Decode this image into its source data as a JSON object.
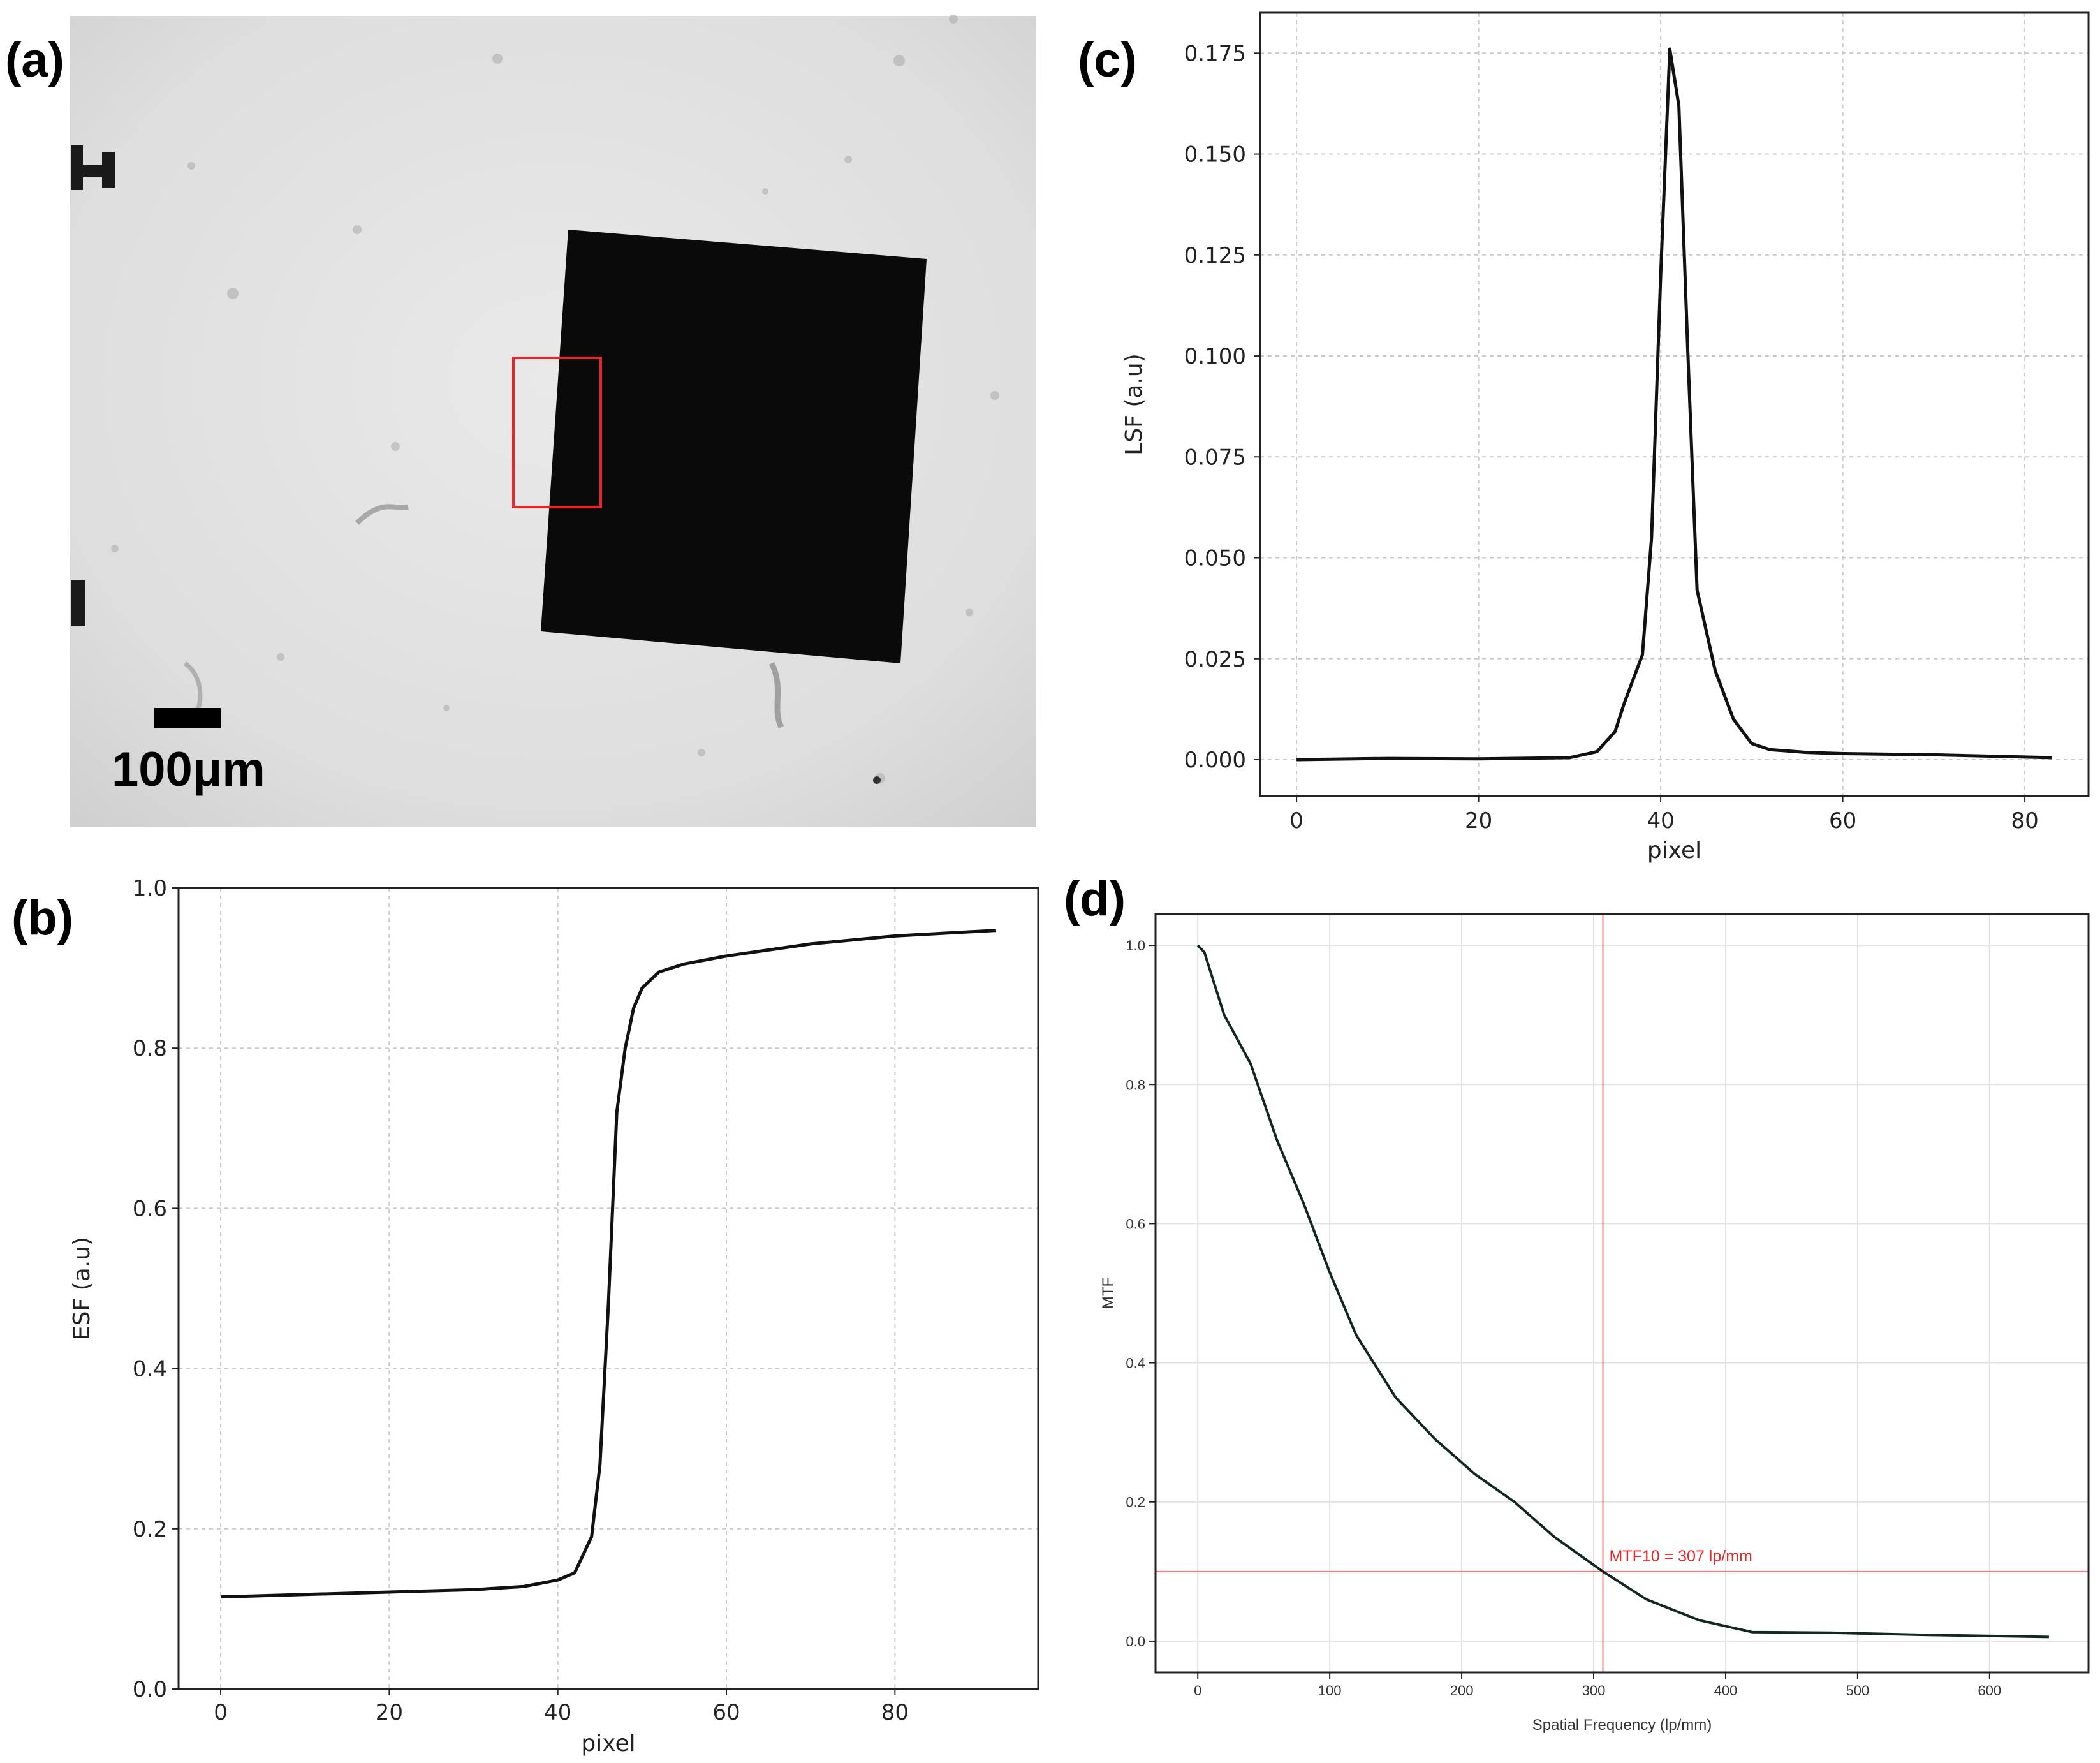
{
  "colors": {
    "micrograph_background": "#e6e6e6",
    "square": "#0a0a0a",
    "roi_box": "#e8262a",
    "curve": "#111111",
    "mtf_curve": "#12281f",
    "mtf10_marker": "#e8262a"
  },
  "panel_a": {
    "label": "(a)",
    "scale_bar_text": "100μm"
  },
  "chart_data": [
    {
      "id": "b",
      "label": "(b)",
      "type": "line",
      "xlabel": "pixel",
      "ylabel": "ESF (a.u)",
      "xlim": [
        -5,
        97
      ],
      "ylim": [
        0.0,
        1.0
      ],
      "xticks": [
        0,
        20,
        40,
        60,
        80
      ],
      "yticks": [
        0.0,
        0.2,
        0.4,
        0.6,
        0.8,
        1.0
      ],
      "ytick_labels": [
        "0.0",
        "0.2",
        "0.4",
        "0.6",
        "0.8",
        "1.0"
      ],
      "grid": true,
      "series": [
        {
          "x": [
            0,
            10,
            20,
            30,
            36,
            40,
            42,
            44,
            45,
            46,
            47,
            48,
            49,
            50,
            52,
            55,
            60,
            70,
            80,
            92
          ],
          "y": [
            0.115,
            0.118,
            0.121,
            0.124,
            0.128,
            0.136,
            0.145,
            0.19,
            0.28,
            0.48,
            0.72,
            0.8,
            0.85,
            0.875,
            0.895,
            0.905,
            0.915,
            0.93,
            0.94,
            0.947
          ]
        }
      ]
    },
    {
      "id": "c",
      "label": "(c)",
      "type": "line",
      "xlabel": "pixel",
      "ylabel": "LSF (a.u)",
      "xlim": [
        -4,
        87
      ],
      "ylim": [
        -0.009,
        0.185
      ],
      "xticks": [
        0,
        20,
        40,
        60,
        80
      ],
      "yticks": [
        0.0,
        0.025,
        0.05,
        0.075,
        0.1,
        0.125,
        0.15,
        0.175
      ],
      "ytick_labels": [
        "0.000",
        "0.025",
        "0.050",
        "0.075",
        "0.100",
        "0.125",
        "0.150",
        "0.175"
      ],
      "grid": true,
      "series": [
        {
          "x": [
            0,
            10,
            20,
            30,
            33,
            35,
            36,
            38,
            39,
            40,
            41,
            42,
            43,
            44,
            46,
            48,
            50,
            52,
            56,
            60,
            70,
            83
          ],
          "y": [
            0.0,
            0.0003,
            0.0002,
            0.0005,
            0.002,
            0.007,
            0.014,
            0.026,
            0.055,
            0.12,
            0.176,
            0.162,
            0.1,
            0.042,
            0.022,
            0.01,
            0.004,
            0.0025,
            0.0018,
            0.0015,
            0.0012,
            0.0005
          ]
        }
      ]
    },
    {
      "id": "d",
      "label": "(d)",
      "type": "line",
      "xlabel": "Spatial Frequency (lp/mm)",
      "ylabel": "MTF",
      "xlim": [
        -32,
        675
      ],
      "ylim": [
        -0.045,
        1.045
      ],
      "xticks": [
        0,
        100,
        200,
        300,
        400,
        500,
        600
      ],
      "yticks": [
        0.0,
        0.2,
        0.4,
        0.6,
        0.8,
        1.0
      ],
      "ytick_labels": [
        "0.0",
        "0.2",
        "0.4",
        "0.6",
        "0.8",
        "1.0"
      ],
      "grid": true,
      "threshold_y": 0.1,
      "marker_x": 307,
      "annotation": "MTF10 = 307 lp/mm",
      "series": [
        {
          "x": [
            0,
            5,
            10,
            20,
            40,
            60,
            80,
            100,
            120,
            150,
            180,
            210,
            240,
            270,
            307,
            340,
            380,
            420,
            480,
            550,
            645
          ],
          "y": [
            1.0,
            0.99,
            0.96,
            0.9,
            0.83,
            0.72,
            0.63,
            0.53,
            0.44,
            0.35,
            0.29,
            0.24,
            0.2,
            0.15,
            0.1,
            0.06,
            0.03,
            0.013,
            0.012,
            0.009,
            0.006
          ]
        }
      ]
    }
  ]
}
